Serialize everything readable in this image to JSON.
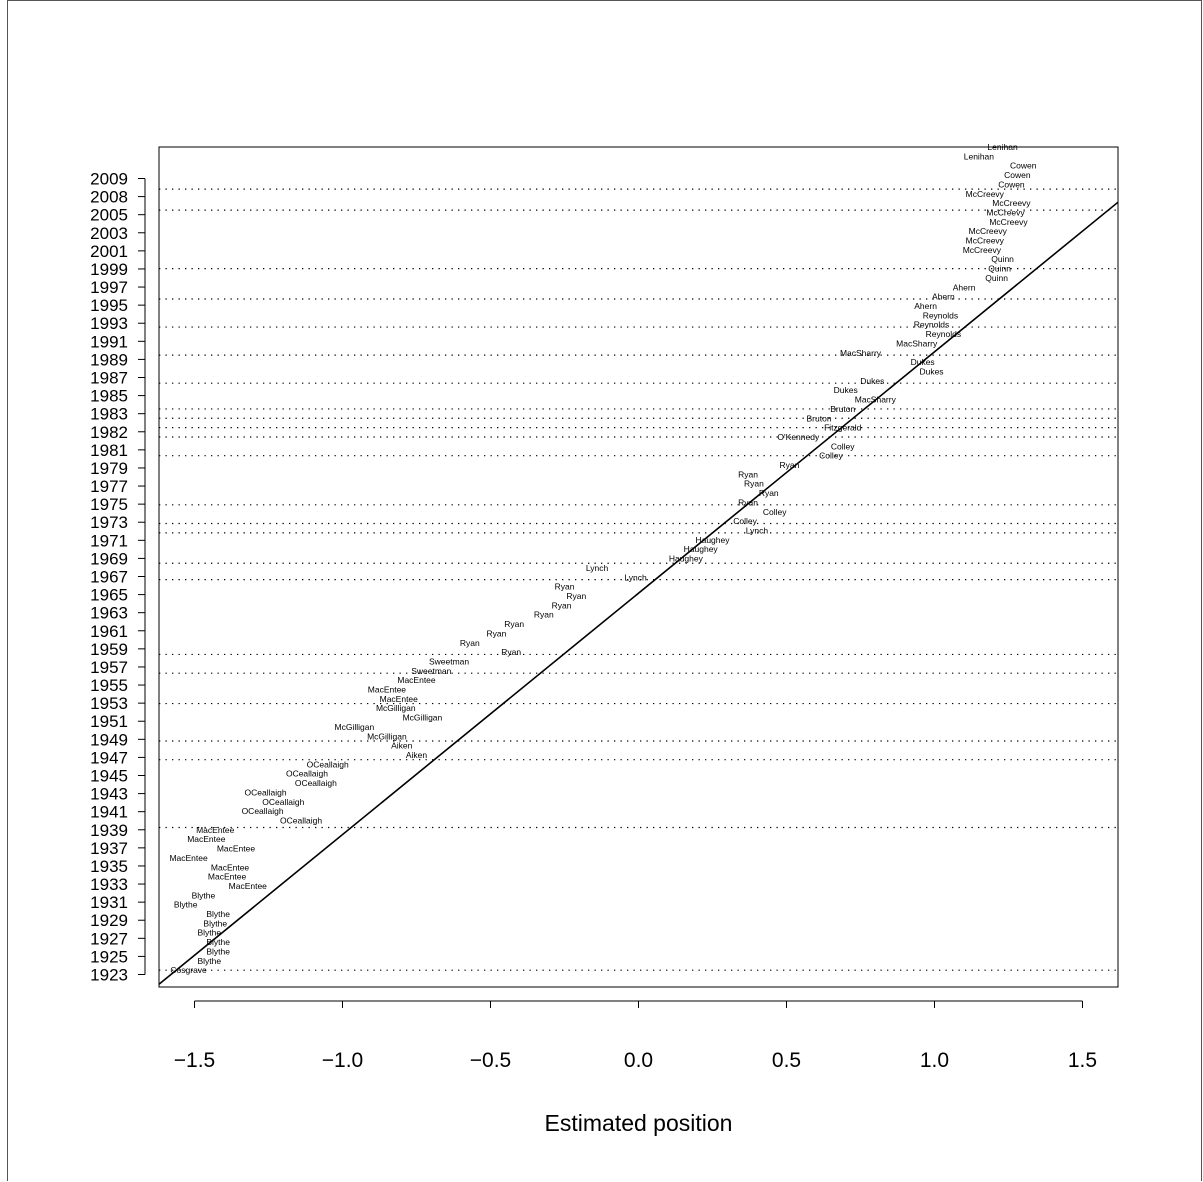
{
  "chart_data": {
    "type": "scatter",
    "title": "",
    "xlabel": "Estimated position",
    "ylabel": "",
    "xlim": [
      -1.62,
      1.62
    ],
    "ylim": [
      1921.2,
      2011.0
    ],
    "x_ticks": [
      "-1.5",
      "-1.0",
      "-0.5",
      "0.0",
      "0.5",
      "1.0",
      "1.5"
    ],
    "x_tick_values": [
      -1.5,
      -1.0,
      -0.5,
      0.0,
      0.5,
      1.0,
      1.5
    ],
    "y_tick_labels": [
      "1923",
      "1925",
      "1927",
      "1929",
      "1931",
      "1933",
      "1935",
      "1937",
      "1939",
      "1941",
      "1943",
      "1945",
      "1947",
      "1949",
      "1951",
      "1953",
      "1955",
      "1957",
      "1959",
      "1961",
      "1963",
      "1965",
      "1967",
      "1969",
      "1971",
      "1973",
      "1975",
      "1977",
      "1979",
      "1981",
      "1982",
      "1983",
      "1985",
      "1987",
      "1989",
      "1991",
      "1993",
      "1995",
      "1997",
      "1999",
      "2001",
      "2003",
      "2005",
      "2008",
      "2009"
    ],
    "fit_line": {
      "x1": -1.62,
      "y1": 1921.5,
      "x2": 1.62,
      "y2": 2005.1
    },
    "dotted_rows": [
      1923,
      1938.25,
      1945.5,
      1947.5,
      1951.5,
      1954.75,
      1956.75,
      1964.75,
      1966.5,
      1969.75,
      1970.75,
      1972.75,
      1978,
      1980,
      1981,
      1982,
      1983,
      1985.75,
      1988.75,
      1991.75,
      1994.75,
      1998,
      2004.25,
      2006.5
    ],
    "grid": "dotted rows at government changes",
    "points": [
      {
        "label": "Cosgrave",
        "x": -1.52,
        "y": 1923.0
      },
      {
        "label": "Blythe",
        "x": -1.45,
        "y": 1924.0
      },
      {
        "label": "Blythe",
        "x": -1.42,
        "y": 1925.0
      },
      {
        "label": "Blythe",
        "x": -1.42,
        "y": 1926.0
      },
      {
        "label": "Blythe",
        "x": -1.45,
        "y": 1927.0
      },
      {
        "label": "Blythe",
        "x": -1.43,
        "y": 1928.0
      },
      {
        "label": "Blythe",
        "x": -1.42,
        "y": 1929.0
      },
      {
        "label": "Blythe",
        "x": -1.53,
        "y": 1930.0
      },
      {
        "label": "Blythe",
        "x": -1.47,
        "y": 1931.0
      },
      {
        "label": "MacEntee",
        "x": -1.32,
        "y": 1932.0
      },
      {
        "label": "MacEntee",
        "x": -1.39,
        "y": 1933.0
      },
      {
        "label": "MacEntee",
        "x": -1.38,
        "y": 1934.0
      },
      {
        "label": "MacEntee",
        "x": -1.52,
        "y": 1935.0
      },
      {
        "label": "MacEntee",
        "x": -1.36,
        "y": 1936.0
      },
      {
        "label": "MacEntee",
        "x": -1.46,
        "y": 1937.0
      },
      {
        "label": "MacEntee",
        "x": -1.43,
        "y": 1938.0
      },
      {
        "label": "OCeallaigh",
        "x": -1.14,
        "y": 1939.0
      },
      {
        "label": "OCeallaigh",
        "x": -1.27,
        "y": 1940.0
      },
      {
        "label": "OCeallaigh",
        "x": -1.2,
        "y": 1941.0
      },
      {
        "label": "OCeallaigh",
        "x": -1.26,
        "y": 1942.0
      },
      {
        "label": "OCeallaigh",
        "x": -1.09,
        "y": 1943.0
      },
      {
        "label": "OCeallaigh",
        "x": -1.12,
        "y": 1944.0
      },
      {
        "label": "OCeallaigh",
        "x": -1.05,
        "y": 1945.0
      },
      {
        "label": "Aiken",
        "x": -0.75,
        "y": 1946.0
      },
      {
        "label": "Aiken",
        "x": -0.8,
        "y": 1947.0
      },
      {
        "label": "McGilligan",
        "x": -0.85,
        "y": 1948.0
      },
      {
        "label": "McGilligan",
        "x": -0.96,
        "y": 1949.0
      },
      {
        "label": "McGilligan",
        "x": -0.73,
        "y": 1950.0
      },
      {
        "label": "McGilligan",
        "x": -0.82,
        "y": 1951.0
      },
      {
        "label": "MacEntee",
        "x": -0.81,
        "y": 1952.0
      },
      {
        "label": "MacEntee",
        "x": -0.85,
        "y": 1953.0
      },
      {
        "label": "MacEntee",
        "x": -0.75,
        "y": 1954.0
      },
      {
        "label": "Sweetman",
        "x": -0.7,
        "y": 1955.0
      },
      {
        "label": "Sweetman",
        "x": -0.64,
        "y": 1956.0
      },
      {
        "label": "Ryan",
        "x": -0.43,
        "y": 1957.0
      },
      {
        "label": "Ryan",
        "x": -0.57,
        "y": 1958.0
      },
      {
        "label": "Ryan",
        "x": -0.48,
        "y": 1959.0
      },
      {
        "label": "Ryan",
        "x": -0.42,
        "y": 1960.0
      },
      {
        "label": "Ryan",
        "x": -0.32,
        "y": 1961.0
      },
      {
        "label": "Ryan",
        "x": -0.26,
        "y": 1962.0
      },
      {
        "label": "Ryan",
        "x": -0.21,
        "y": 1963.0
      },
      {
        "label": "Ryan",
        "x": -0.25,
        "y": 1964.0
      },
      {
        "label": "Lynch",
        "x": -0.01,
        "y": 1965.0
      },
      {
        "label": "Lynch",
        "x": -0.14,
        "y": 1966.0
      },
      {
        "label": "Haughey",
        "x": 0.16,
        "y": 1967.0
      },
      {
        "label": "Haughey",
        "x": 0.21,
        "y": 1968.0
      },
      {
        "label": "Haughey",
        "x": 0.25,
        "y": 1969.0
      },
      {
        "label": "Lynch",
        "x": 0.4,
        "y": 1970.0
      },
      {
        "label": "Colley",
        "x": 0.36,
        "y": 1971.0
      },
      {
        "label": "Colley",
        "x": 0.46,
        "y": 1972.0
      },
      {
        "label": "Ryan",
        "x": 0.37,
        "y": 1973.0
      },
      {
        "label": "Ryan",
        "x": 0.44,
        "y": 1974.0
      },
      {
        "label": "Ryan",
        "x": 0.39,
        "y": 1975.0
      },
      {
        "label": "Ryan",
        "x": 0.37,
        "y": 1976.0
      },
      {
        "label": "Ryan",
        "x": 0.51,
        "y": 1977.0
      },
      {
        "label": "Colley",
        "x": 0.65,
        "y": 1978.0
      },
      {
        "label": "Colley",
        "x": 0.69,
        "y": 1979.0
      },
      {
        "label": "O'Kennedy",
        "x": 0.54,
        "y": 1980.0
      },
      {
        "label": "Fitzgerald",
        "x": 0.69,
        "y": 1981.0
      },
      {
        "label": "Bruton",
        "x": 0.61,
        "y": 1982.0
      },
      {
        "label": "Bruton",
        "x": 0.69,
        "y": 1983.0
      },
      {
        "label": "MacSharry",
        "x": 0.8,
        "y": 1984.0
      },
      {
        "label": "Dukes",
        "x": 0.7,
        "y": 1985.0
      },
      {
        "label": "Dukes",
        "x": 0.79,
        "y": 1986.0
      },
      {
        "label": "Dukes",
        "x": 0.99,
        "y": 1987.0
      },
      {
        "label": "Dukes",
        "x": 0.96,
        "y": 1988.0
      },
      {
        "label": "MacSharry",
        "x": 0.75,
        "y": 1989.0
      },
      {
        "label": "MacSharry",
        "x": 0.94,
        "y": 1990.0
      },
      {
        "label": "Reynolds",
        "x": 1.03,
        "y": 1991.0
      },
      {
        "label": "Reynolds",
        "x": 0.99,
        "y": 1992.0
      },
      {
        "label": "Reynolds",
        "x": 1.02,
        "y": 1993.0
      },
      {
        "label": "Ahern",
        "x": 0.97,
        "y": 1994.0
      },
      {
        "label": "Ahern",
        "x": 1.03,
        "y": 1995.0
      },
      {
        "label": "Ahern",
        "x": 1.1,
        "y": 1996.0
      },
      {
        "label": "Quinn",
        "x": 1.21,
        "y": 1997.0
      },
      {
        "label": "Quinn",
        "x": 1.22,
        "y": 1998.0
      },
      {
        "label": "Quinn",
        "x": 1.23,
        "y": 1999.0
      },
      {
        "label": "McCreevy",
        "x": 1.16,
        "y": 2000.0
      },
      {
        "label": "McCreevy",
        "x": 1.17,
        "y": 2001.0
      },
      {
        "label": "McCreevy",
        "x": 1.18,
        "y": 2002.0
      },
      {
        "label": "McCreevy",
        "x": 1.25,
        "y": 2003.0
      },
      {
        "label": "McCreevy",
        "x": 1.24,
        "y": 2004.0
      },
      {
        "label": "McCreevy",
        "x": 1.26,
        "y": 2005.0
      },
      {
        "label": "McCreevy",
        "x": 1.17,
        "y": 2006.0
      },
      {
        "label": "Cowen",
        "x": 1.26,
        "y": 2007.0
      },
      {
        "label": "Cowen",
        "x": 1.28,
        "y": 2008.0
      },
      {
        "label": "Cowen",
        "x": 1.3,
        "y": 2009.0
      },
      {
        "label": "Lenihan",
        "x": 1.15,
        "y": 2010.0
      },
      {
        "label": "Lenihan",
        "x": 1.23,
        "y": 2011.0
      }
    ]
  }
}
